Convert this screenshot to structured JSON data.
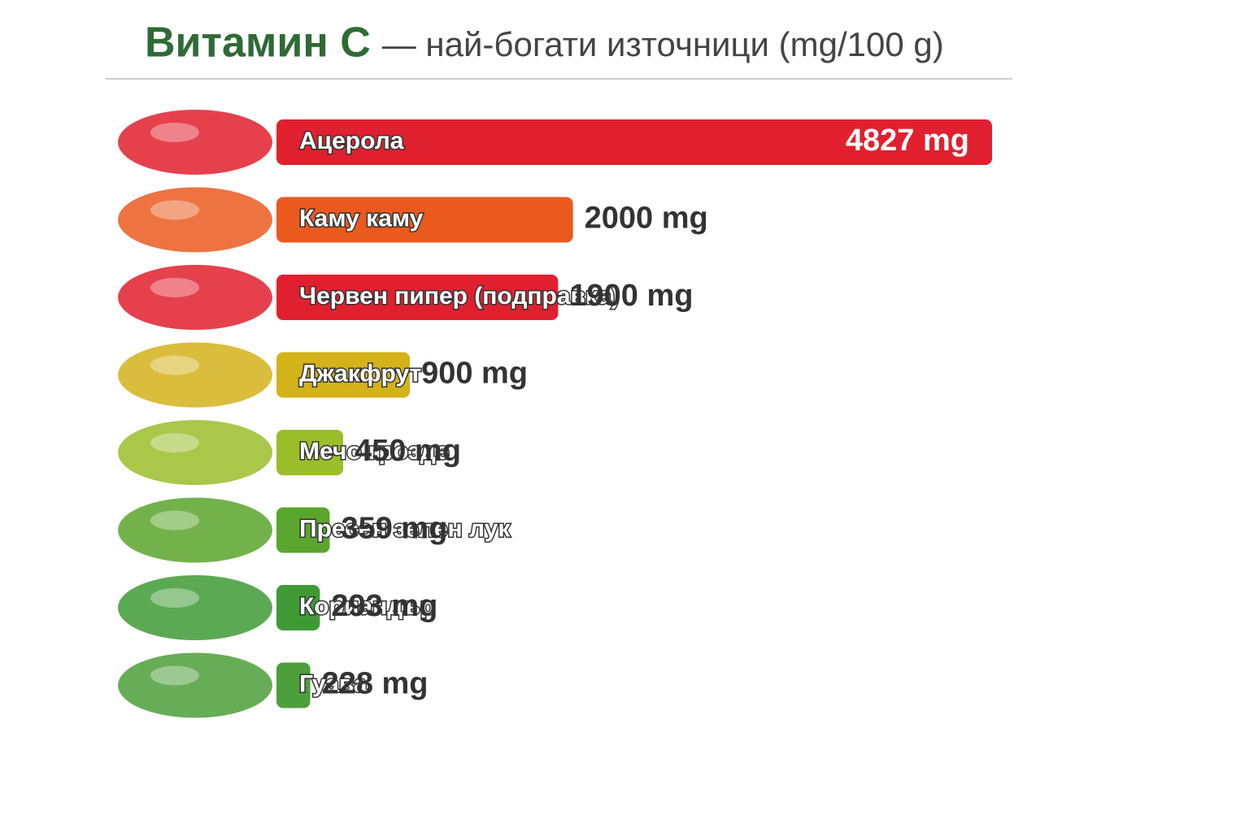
{
  "chart_data": {
    "type": "bar",
    "orientation": "horizontal",
    "title": "Витамин C",
    "subtitle": "— най-богати източници (mg/100 g)",
    "categories": [
      "Ацерола",
      "Каму каму",
      "Червен пипер (подправка)",
      "Джакфрут",
      "Мечо грозде",
      "Пресен зелен лук",
      "Кориандър",
      "Гуава"
    ],
    "values": [
      4827,
      2000,
      1900,
      900,
      450,
      359,
      293,
      228
    ],
    "value_labels": [
      "4827 mg",
      "2000 mg",
      "1900 mg",
      "900 mg",
      "450 mg",
      "359 mg",
      "293 mg",
      "228 mg"
    ],
    "colors": [
      "#e0202e",
      "#ea5a1e",
      "#e0202e",
      "#d4b21a",
      "#9bbd2a",
      "#5aa52c",
      "#3f9a36",
      "#4c9f3a"
    ]
  }
}
